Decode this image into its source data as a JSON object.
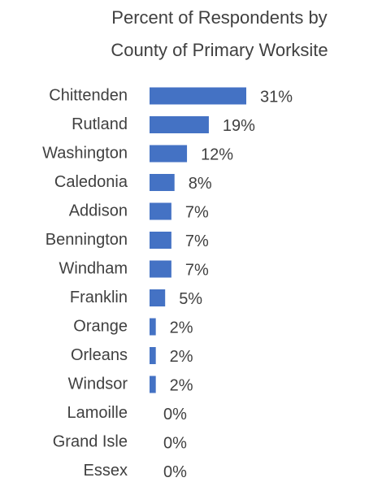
{
  "chart_data": {
    "type": "bar",
    "orientation": "horizontal",
    "title": [
      "Percent of Respondents by",
      "County of Primary Worksite"
    ],
    "categories": [
      "Chittenden",
      "Rutland",
      "Washington",
      "Caledonia",
      "Addison",
      "Bennington",
      "Windham",
      "Franklin",
      "Orange",
      "Orleans",
      "Windsor",
      "Lamoille",
      "Grand Isle",
      "Essex"
    ],
    "values": [
      31,
      19,
      12,
      8,
      7,
      7,
      7,
      5,
      2,
      2,
      2,
      0,
      0,
      0
    ],
    "value_labels": [
      "31%",
      "19%",
      "12%",
      "8%",
      "7%",
      "7%",
      "7%",
      "5%",
      "2%",
      "2%",
      "2%",
      "0%",
      "0%",
      "0%"
    ],
    "color": "#4472c4"
  }
}
